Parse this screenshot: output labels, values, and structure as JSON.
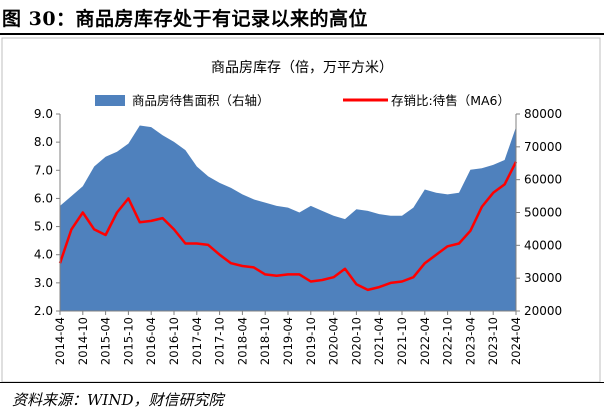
{
  "figure": {
    "title": "图 30：商品房库存处于有记录以来的高位",
    "source": "资料来源：WIND，财信研究院"
  },
  "chart_data": {
    "type": "area+line",
    "title": "商品房库存（倍，万平方米）",
    "series": [
      {
        "name": "商品房待售面积（右轴）",
        "type": "area",
        "axis": "right",
        "color": "#4f81bd",
        "x": [
          "2014-04",
          "2014-07",
          "2014-10",
          "2015-01",
          "2015-04",
          "2015-07",
          "2015-10",
          "2016-01",
          "2016-04",
          "2016-07",
          "2016-10",
          "2017-01",
          "2017-04",
          "2017-07",
          "2017-10",
          "2018-01",
          "2018-04",
          "2018-07",
          "2018-10",
          "2019-01",
          "2019-04",
          "2019-07",
          "2019-10",
          "2020-01",
          "2020-04",
          "2020-07",
          "2020-10",
          "2021-01",
          "2021-04",
          "2021-07",
          "2021-10",
          "2022-01",
          "2022-04",
          "2022-07",
          "2022-10",
          "2023-01",
          "2023-04",
          "2023-07",
          "2023-10",
          "2024-01",
          "2024-04"
        ],
        "values": [
          52000,
          55000,
          58000,
          64000,
          67000,
          68500,
          71000,
          76500,
          76000,
          73500,
          71500,
          69000,
          64000,
          61000,
          59000,
          57500,
          55500,
          54000,
          53000,
          52000,
          51500,
          50000,
          52000,
          50500,
          49000,
          48000,
          51000,
          50500,
          49500,
          49000,
          49000,
          51500,
          57000,
          56000,
          55500,
          56000,
          63000,
          63500,
          64500,
          66000,
          76000
        ]
      },
      {
        "name": "存销比:待售（MA6）",
        "type": "line",
        "axis": "left",
        "color": "#ff0000",
        "x": [
          "2014-04",
          "2014-07",
          "2014-10",
          "2015-01",
          "2015-04",
          "2015-07",
          "2015-10",
          "2016-01",
          "2016-04",
          "2016-07",
          "2016-10",
          "2017-01",
          "2017-04",
          "2017-07",
          "2017-10",
          "2018-01",
          "2018-04",
          "2018-07",
          "2018-10",
          "2019-01",
          "2019-04",
          "2019-07",
          "2019-10",
          "2020-01",
          "2020-04",
          "2020-07",
          "2020-10",
          "2021-01",
          "2021-04",
          "2021-07",
          "2021-10",
          "2022-01",
          "2022-04",
          "2022-07",
          "2022-10",
          "2023-01",
          "2023-04",
          "2023-07",
          "2023-10",
          "2024-01",
          "2024-04"
        ],
        "values": [
          3.7,
          4.9,
          5.5,
          4.9,
          4.7,
          5.5,
          6.0,
          5.15,
          5.2,
          5.3,
          4.9,
          4.4,
          4.4,
          4.35,
          4.0,
          3.7,
          3.6,
          3.55,
          3.3,
          3.25,
          3.3,
          3.3,
          3.05,
          3.1,
          3.2,
          3.5,
          2.95,
          2.75,
          2.85,
          3.0,
          3.05,
          3.2,
          3.7,
          4.0,
          4.3,
          4.4,
          4.85,
          5.7,
          6.2,
          6.5,
          7.3
        ]
      }
    ],
    "left_axis": {
      "min": 2.0,
      "max": 9.0,
      "ticks": [
        "2.0",
        "3.0",
        "4.0",
        "5.0",
        "6.0",
        "7.0",
        "8.0",
        "9.0"
      ]
    },
    "right_axis": {
      "min": 20000,
      "max": 80000,
      "ticks": [
        "20000",
        "30000",
        "40000",
        "50000",
        "60000",
        "70000",
        "80000"
      ]
    },
    "x_ticks": [
      "2014-04",
      "2014-10",
      "2015-04",
      "2015-10",
      "2016-04",
      "2016-10",
      "2017-04",
      "2017-10",
      "2018-04",
      "2018-10",
      "2019-04",
      "2019-10",
      "2020-04",
      "2020-10",
      "2021-04",
      "2021-10",
      "2022-04",
      "2022-10",
      "2023-04",
      "2023-10",
      "2024-04"
    ],
    "legend_position": "top",
    "grid": false
  }
}
